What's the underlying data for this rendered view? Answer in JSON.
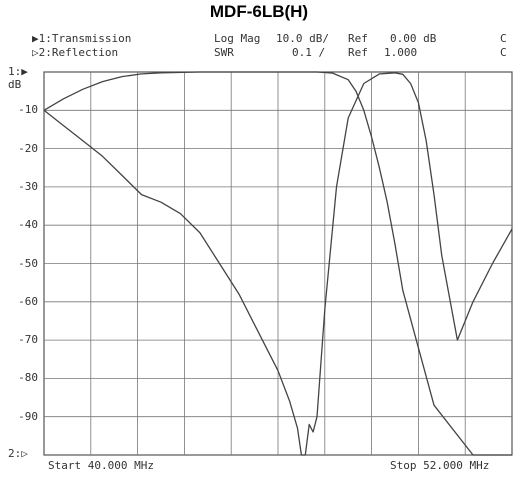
{
  "header": {
    "title": "MDF-6LB(H)",
    "trace1_label": "▶1:Transmission",
    "trace2_label": "▷2:Reflection",
    "trace1_format": "Log Mag",
    "trace1_scale": "10.0 dB/",
    "trace1_ref_label": "Ref",
    "trace1_ref": "0.00 dB",
    "trace1_flag": "C",
    "trace2_format": "SWR",
    "trace2_scale": "0.1 /",
    "trace2_ref_label": "Ref",
    "trace2_ref": "1.000",
    "trace2_flag": "C",
    "marker1": "1:▶",
    "unit": "dB",
    "marker2": "2:▷"
  },
  "footer": {
    "start": "Start 40.000 MHz",
    "stop": "Stop 52.000 MHz"
  },
  "chart_data": {
    "type": "line",
    "title": "MDF-6LB(H)",
    "xlabel": "",
    "ylabel": "dB",
    "xlim": [
      40,
      52
    ],
    "ylim": [
      -100,
      0
    ],
    "grid": true,
    "ytick_labels": [
      "-10",
      "-20",
      "-30",
      "-40",
      "-50",
      "-60",
      "-70",
      "-80",
      "-90"
    ],
    "series": [
      {
        "name": "Transmission",
        "x": [
          40.0,
          40.5,
          41.0,
          41.5,
          42.0,
          42.5,
          43.0,
          44.0,
          45.0,
          46.0,
          47.0,
          47.4,
          47.8,
          48.0,
          48.2,
          48.4,
          48.6,
          48.8,
          49.0,
          49.2,
          49.6,
          50.0,
          51.0,
          52.0
        ],
        "values": [
          -10.0,
          -7.0,
          -4.5,
          -2.5,
          -1.2,
          -0.5,
          -0.2,
          0.0,
          0.0,
          0.0,
          0.0,
          -0.3,
          -2.0,
          -5.0,
          -10.0,
          -17.0,
          -25.0,
          -34.0,
          -45.0,
          -57.0,
          -72.0,
          -87.0,
          -100.0,
          -100.0
        ]
      },
      {
        "name": "Reflection",
        "x": [
          40.0,
          40.5,
          41.0,
          41.5,
          42.0,
          42.5,
          43.0,
          43.5,
          44.0,
          44.5,
          45.0,
          45.5,
          46.0,
          46.3,
          46.5,
          46.6,
          46.7,
          46.8,
          46.9,
          47.0,
          47.2,
          47.5,
          47.8,
          48.2,
          48.6,
          49.0,
          49.2,
          49.4,
          49.6,
          49.8,
          50.0,
          50.2,
          50.6,
          51.0,
          51.5,
          52.0
        ],
        "values": [
          -10.0,
          -14.0,
          -18.0,
          -22.0,
          -27.0,
          -32.0,
          -34.0,
          -37.0,
          -42.0,
          -50.0,
          -58.0,
          -68.0,
          -78.0,
          -86.0,
          -93.0,
          -100.0,
          -100.0,
          -92.0,
          -94.0,
          -90.0,
          -62.0,
          -30.0,
          -12.0,
          -3.0,
          -0.5,
          -0.2,
          -0.6,
          -3.0,
          -8.0,
          -18.0,
          -32.0,
          -48.0,
          -70.0,
          -60.0,
          -50.0,
          -41.0
        ]
      }
    ]
  }
}
